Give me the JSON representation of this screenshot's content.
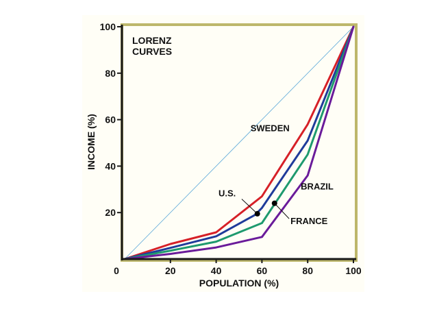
{
  "chart_data": {
    "type": "line",
    "title": [
      "LORENZ",
      "CURVES"
    ],
    "xlabel": "POPULATION (%)",
    "ylabel": "INCOME (%)",
    "xlim": [
      0,
      100
    ],
    "ylim": [
      0,
      100
    ],
    "x_ticks": [
      0,
      20,
      40,
      60,
      80,
      100
    ],
    "x_tick_labels": [
      "0",
      "20",
      "40",
      "60",
      "80",
      "100"
    ],
    "y_ticks": [
      20,
      40,
      60,
      80,
      100
    ],
    "y_tick_labels": [
      "20",
      "40",
      "60",
      "80",
      "100"
    ],
    "grid": false,
    "colors": {
      "background": "#fffef6",
      "frame": "#bdb76b",
      "axis": "#1a1a1a",
      "equality": "#5aa7d8"
    },
    "equality_line": {
      "x": [
        0,
        100
      ],
      "y": [
        0,
        100
      ],
      "color": "#5aa7d8"
    },
    "series": [
      {
        "key": "sweden",
        "color": "#d62027",
        "x": [
          0,
          20,
          40,
          60,
          80,
          100
        ],
        "y": [
          0,
          6.5,
          11.5,
          27,
          58,
          100
        ]
      },
      {
        "key": "us",
        "color": "#1f3b9a",
        "x": [
          0,
          20,
          40,
          57,
          60,
          80,
          100
        ],
        "y": [
          0,
          4.8,
          9.8,
          19,
          22,
          51,
          100
        ]
      },
      {
        "key": "france",
        "color": "#1e9a6e",
        "x": [
          0,
          20,
          40,
          60,
          80,
          100
        ],
        "y": [
          0,
          3.6,
          7.5,
          15.5,
          45,
          100
        ]
      },
      {
        "key": "brazil",
        "color": "#6a1b9a",
        "x": [
          0,
          20,
          40,
          60,
          80,
          100
        ],
        "y": [
          0,
          2.2,
          5,
          9.5,
          36,
          100
        ]
      }
    ],
    "annotations": [
      {
        "text": "SWEDEN",
        "x": 55,
        "y": 55
      },
      {
        "text": "BRAZIL",
        "x": 77,
        "y": 30
      },
      {
        "text": "U.S.",
        "x": 41,
        "y": 27,
        "point": [
          58,
          19.5
        ]
      },
      {
        "text": "FRANCE",
        "x": 72.5,
        "y": 15,
        "point": [
          65.5,
          24
        ]
      }
    ]
  }
}
